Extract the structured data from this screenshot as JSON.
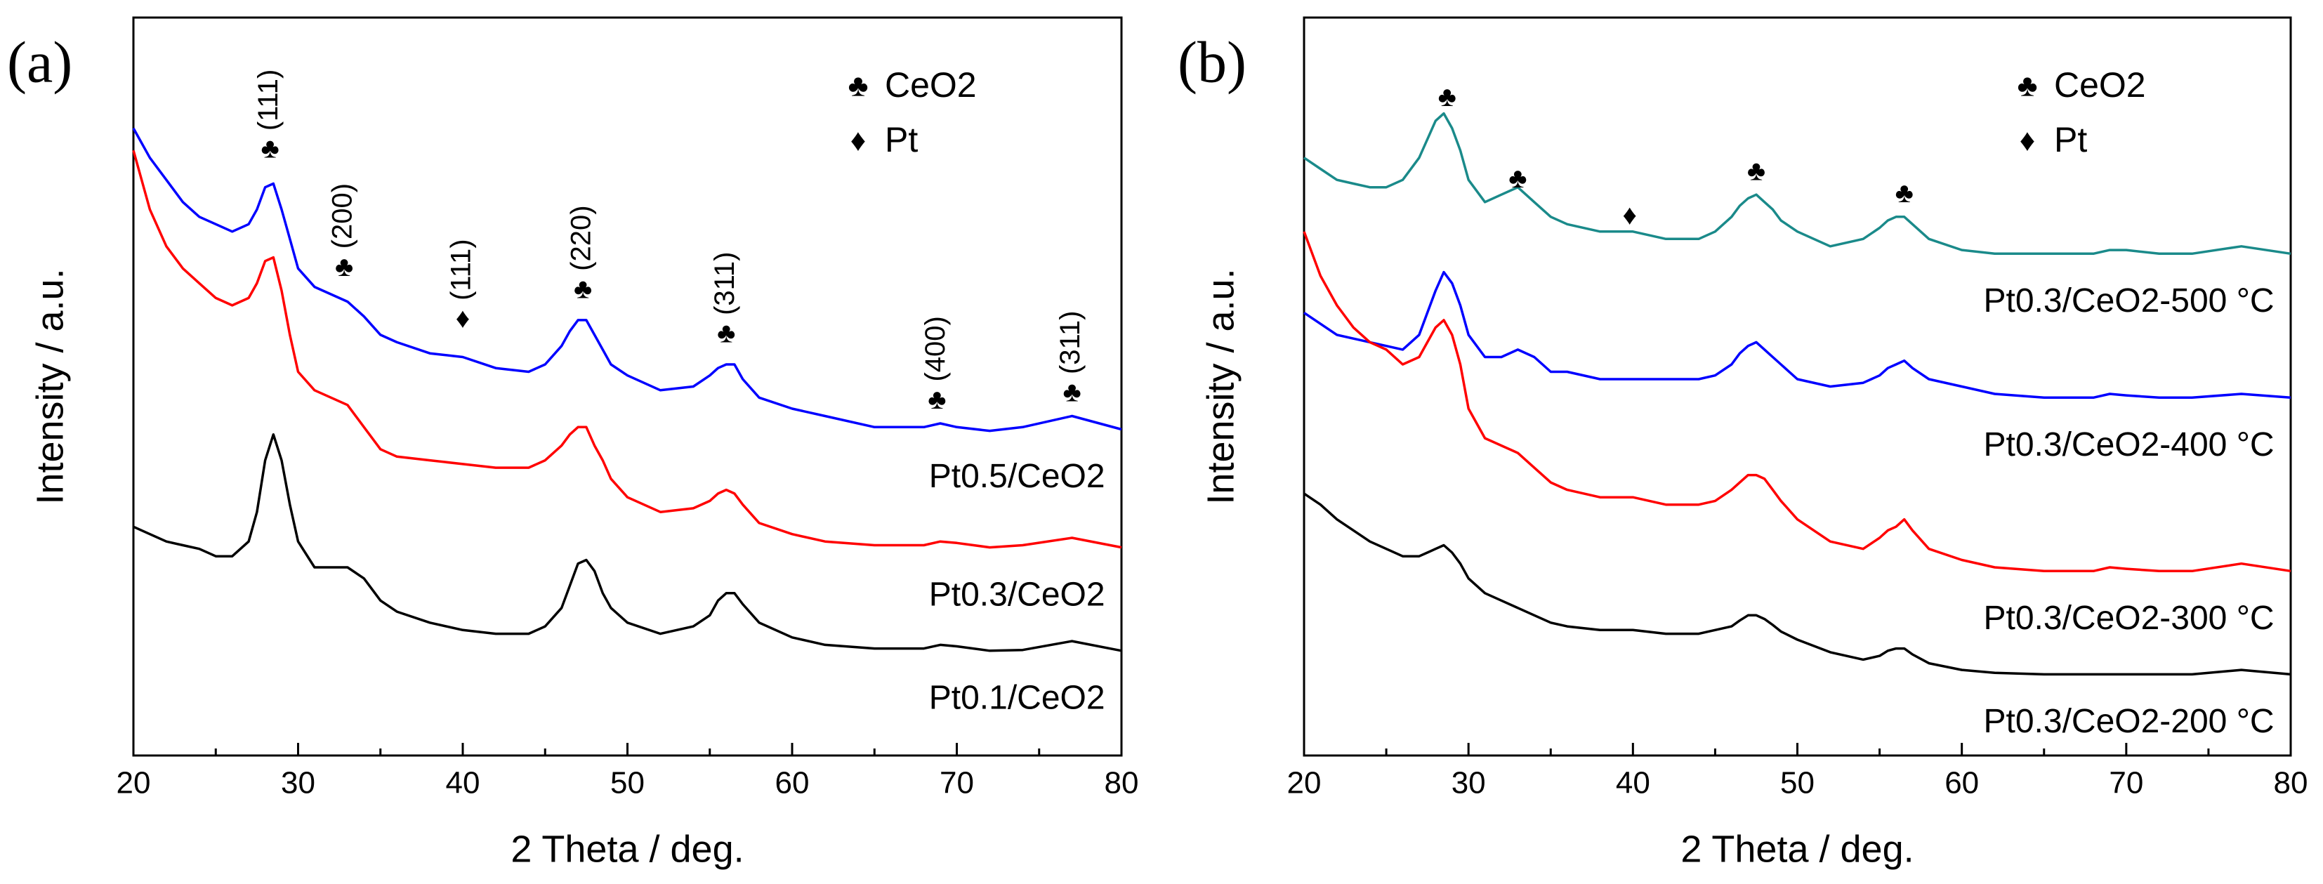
{
  "chart_data": [
    {
      "type": "line",
      "panel_label": "(a)",
      "xlabel": "2 Theta / deg.",
      "ylabel": "Intensity / a.u.",
      "xlim": [
        20,
        80
      ],
      "xticks": [
        20,
        30,
        40,
        50,
        60,
        70,
        80
      ],
      "ylim": [
        0,
        100
      ],
      "x": [
        20,
        21,
        22,
        23,
        24,
        25,
        26,
        27,
        27.5,
        28,
        28.5,
        29,
        29.5,
        30,
        31,
        32,
        33,
        34,
        35,
        36,
        38,
        40,
        42,
        44,
        45,
        46,
        46.5,
        47,
        47.5,
        48,
        48.5,
        49,
        50,
        52,
        54,
        55,
        55.5,
        56,
        56.5,
        57,
        58,
        60,
        62,
        65,
        68,
        69,
        70,
        72,
        74,
        77,
        80
      ],
      "series": [
        {
          "name": "Pt0.5/CeO2",
          "color": "#0000ff",
          "values": [
            85,
            81,
            78,
            75,
            73,
            72,
            71,
            72,
            74,
            77,
            77.5,
            74,
            70,
            66,
            63.5,
            62.5,
            61.5,
            59.5,
            57,
            56,
            54.5,
            54,
            52.5,
            52,
            53,
            55.5,
            57.5,
            59,
            59,
            57,
            55,
            53,
            51.5,
            49.5,
            50,
            51.5,
            52.5,
            53,
            53,
            51,
            48.5,
            47,
            46,
            44.5,
            44.5,
            45,
            44.5,
            44,
            44.5,
            46,
            44.2
          ]
        },
        {
          "name": "Pt0.3/CeO2",
          "color": "#ff0000",
          "values": [
            82,
            74,
            69,
            66,
            64,
            62,
            61,
            62,
            64,
            67,
            67.5,
            63,
            57,
            52,
            49.5,
            48.5,
            47.5,
            44.5,
            41.5,
            40.5,
            40,
            39.5,
            39,
            39,
            40,
            42,
            43.5,
            44.5,
            44.5,
            42,
            40,
            37.5,
            35,
            33,
            33.5,
            34.5,
            35.5,
            36,
            35.5,
            34,
            31.5,
            30,
            29,
            28.5,
            28.5,
            29,
            28.8,
            28.2,
            28.5,
            29.5,
            28.2
          ]
        },
        {
          "name": "Pt0.1/CeO2",
          "color": "#000000",
          "values": [
            31,
            30,
            29,
            28.5,
            28,
            27,
            27,
            29,
            33,
            40,
            43.5,
            40,
            34,
            29,
            25.5,
            25.5,
            25.5,
            24,
            21,
            19.5,
            18,
            17,
            16.5,
            16.5,
            17.5,
            20,
            23,
            26,
            26.5,
            25,
            22,
            20,
            18,
            16.5,
            17.5,
            19,
            21,
            22,
            22,
            20.5,
            18,
            16,
            15,
            14.5,
            14.5,
            15,
            14.8,
            14.2,
            14.3,
            15.5,
            14.2
          ]
        }
      ],
      "annotations": [
        {
          "x": 28.3,
          "y": 82,
          "symbol": "♣",
          "label": "(111)"
        },
        {
          "x": 32.8,
          "y": 66,
          "symbol": "♣",
          "label": "(200)"
        },
        {
          "x": 40,
          "y": 59,
          "symbol": "♦",
          "label": "(111)"
        },
        {
          "x": 47.3,
          "y": 63,
          "symbol": "♣",
          "label": "(220)"
        },
        {
          "x": 56,
          "y": 57,
          "symbol": "♣",
          "label": "(311)"
        },
        {
          "x": 68.8,
          "y": 48,
          "symbol": "♣",
          "label": "(400)"
        },
        {
          "x": 77,
          "y": 49,
          "symbol": "♣",
          "label": "(311)"
        }
      ],
      "legend": "upper right",
      "markers": [
        {
          "symbol": "♣",
          "label": "CeO2"
        },
        {
          "symbol": "♦",
          "label": "Pt"
        }
      ]
    },
    {
      "type": "line",
      "panel_label": "(b)",
      "xlabel": "2 Theta / deg.",
      "ylabel": "Intensity / a.u.",
      "xlim": [
        20,
        80
      ],
      "xticks": [
        20,
        30,
        40,
        50,
        60,
        70,
        80
      ],
      "ylim": [
        0,
        100
      ],
      "x": [
        20,
        21,
        22,
        23,
        24,
        25,
        26,
        27,
        27.5,
        28,
        28.5,
        29,
        29.5,
        30,
        31,
        32,
        33,
        34,
        35,
        36,
        38,
        40,
        42,
        44,
        45,
        46,
        46.5,
        47,
        47.5,
        48,
        48.5,
        49,
        50,
        52,
        54,
        55,
        55.5,
        56,
        56.5,
        57,
        58,
        60,
        62,
        65,
        68,
        69,
        70,
        72,
        74,
        77,
        80
      ],
      "series": [
        {
          "name": "Pt0.3/CeO2-500 °C",
          "color": "#1a8a8a",
          "values": [
            81,
            79.5,
            78,
            77.5,
            77,
            77,
            78,
            81,
            83.5,
            86,
            87,
            85,
            82,
            78,
            75,
            76,
            77,
            75,
            73,
            72,
            71,
            71,
            70,
            70,
            71,
            73,
            74.5,
            75.5,
            76,
            75,
            74,
            72.5,
            71,
            69,
            70,
            71.5,
            72.5,
            73,
            73,
            72,
            70,
            68.5,
            68,
            68,
            68,
            68.5,
            68.5,
            68,
            68,
            69,
            68
          ]
        },
        {
          "name": "Pt0.3/CeO2-400 °C",
          "color": "#0000ff",
          "values": [
            60,
            58.5,
            57,
            56.5,
            56,
            55.5,
            55,
            57,
            60,
            63,
            65.5,
            64,
            61,
            57,
            54,
            54,
            55,
            54,
            52,
            52,
            51,
            51,
            51,
            51,
            51.5,
            53,
            54.5,
            55.5,
            56,
            55,
            54,
            53,
            51,
            50,
            50.5,
            51.5,
            52.5,
            53,
            53.5,
            52.5,
            51,
            50,
            49,
            48.5,
            48.5,
            49,
            48.8,
            48.5,
            48.5,
            49,
            48.5
          ]
        },
        {
          "name": "Pt0.3/CeO2-300 °C",
          "color": "#ff0000",
          "values": [
            71,
            65,
            61,
            58,
            56,
            55,
            53,
            54,
            56,
            58,
            59,
            57,
            53,
            47,
            43,
            42,
            41,
            39,
            37,
            36,
            35,
            35,
            34,
            34,
            34.5,
            36,
            37,
            38,
            38,
            37.5,
            36,
            34.5,
            32,
            29,
            28,
            29.5,
            30.5,
            31,
            32,
            30.5,
            28,
            26.5,
            25.5,
            25,
            25,
            25.5,
            25.3,
            25,
            25,
            26,
            25
          ]
        },
        {
          "name": "Pt0.3/CeO2-200 °C",
          "color": "#000000",
          "values": [
            35.5,
            34,
            32,
            30.5,
            29,
            28,
            27,
            27,
            27.5,
            28,
            28.5,
            27.5,
            26,
            24,
            22,
            21,
            20,
            19,
            18,
            17.5,
            17,
            17,
            16.5,
            16.5,
            17,
            17.5,
            18.3,
            19,
            19,
            18.5,
            17.7,
            16.8,
            15.7,
            14,
            13,
            13.5,
            14.2,
            14.5,
            14.5,
            13.7,
            12.5,
            11.6,
            11.2,
            11,
            11,
            11,
            11,
            11,
            11,
            11.6,
            11
          ]
        }
      ],
      "annotations": [
        {
          "x": 28.7,
          "y": 89,
          "symbol": "♣"
        },
        {
          "x": 33,
          "y": 78,
          "symbol": "♣"
        },
        {
          "x": 39.8,
          "y": 73,
          "symbol": "♦"
        },
        {
          "x": 47.5,
          "y": 79,
          "symbol": "♣"
        },
        {
          "x": 56.5,
          "y": 76,
          "symbol": "♣"
        }
      ],
      "legend": "upper right",
      "markers": [
        {
          "symbol": "♣",
          "label": "CeO2"
        },
        {
          "symbol": "♦",
          "label": "Pt"
        }
      ]
    }
  ]
}
